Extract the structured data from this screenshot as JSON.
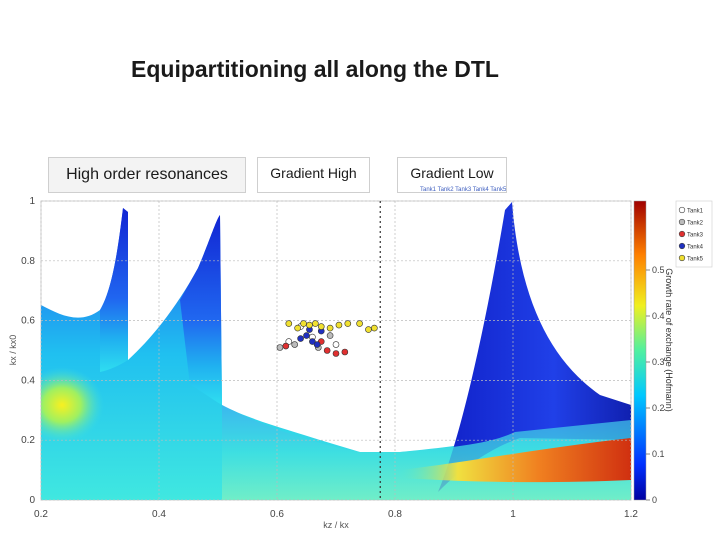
{
  "page": {
    "title": "Equipartitioning all along the DTL",
    "labels": {
      "high_order": "High order resonances",
      "gradient_high": "Gradient High",
      "gradient_low": "Gradient Low"
    }
  },
  "chart_data": {
    "type": "heatmap",
    "title": "",
    "xlabel": "kz / kx",
    "ylabel": "kx / kx0",
    "colorbar_label": "Growth rate of exchange (Hofmann)",
    "xlim": [
      0.2,
      1.2
    ],
    "ylim": [
      0,
      1
    ],
    "x_ticks": [
      "0.2",
      "0.4",
      "0.6",
      "0.8",
      "1",
      "1.2"
    ],
    "y_ticks": [
      "0",
      "0.2",
      "0.4",
      "0.6",
      "0.8",
      "1"
    ],
    "colorbar_range": [
      0,
      0.65
    ],
    "colorbar_ticks": [
      "0",
      "0.1",
      "0.2",
      "0.3",
      "0.4",
      "0.5"
    ],
    "grid": true,
    "vertical_line_x": 0.775,
    "header_text": "Tank1 Tank2 Tank3 Tank4 Tank5",
    "legend": [
      {
        "name": "Tank1",
        "color": "#ffffff"
      },
      {
        "name": "Tank2",
        "color": "#bbbbbb"
      },
      {
        "name": "Tank3",
        "color": "#e03030"
      },
      {
        "name": "Tank4",
        "color": "#2030c0"
      },
      {
        "name": "Tank5",
        "color": "#f0e030"
      }
    ],
    "series": [
      {
        "name": "Tank1",
        "color": "#ffffff",
        "points": [
          [
            0.62,
            0.53
          ],
          [
            0.66,
            0.545
          ],
          [
            0.7,
            0.52
          ],
          [
            0.64,
            0.58
          ]
        ]
      },
      {
        "name": "Tank2",
        "color": "#bbbbbb",
        "points": [
          [
            0.605,
            0.51
          ],
          [
            0.63,
            0.52
          ],
          [
            0.67,
            0.51
          ],
          [
            0.69,
            0.55
          ]
        ]
      },
      {
        "name": "Tank3",
        "color": "#e03030",
        "points": [
          [
            0.615,
            0.515
          ],
          [
            0.685,
            0.5
          ],
          [
            0.7,
            0.49
          ],
          [
            0.715,
            0.495
          ],
          [
            0.675,
            0.53
          ]
        ]
      },
      {
        "name": "Tank4",
        "color": "#2030c0",
        "points": [
          [
            0.64,
            0.54
          ],
          [
            0.65,
            0.55
          ],
          [
            0.66,
            0.53
          ],
          [
            0.668,
            0.52
          ],
          [
            0.675,
            0.565
          ],
          [
            0.655,
            0.57
          ]
        ]
      },
      {
        "name": "Tank5",
        "color": "#f0e030",
        "points": [
          [
            0.62,
            0.59
          ],
          [
            0.635,
            0.575
          ],
          [
            0.645,
            0.59
          ],
          [
            0.655,
            0.585
          ],
          [
            0.665,
            0.59
          ],
          [
            0.675,
            0.58
          ],
          [
            0.69,
            0.575
          ],
          [
            0.705,
            0.585
          ],
          [
            0.72,
            0.59
          ],
          [
            0.74,
            0.59
          ],
          [
            0.755,
            0.57
          ],
          [
            0.765,
            0.575
          ]
        ]
      }
    ]
  }
}
